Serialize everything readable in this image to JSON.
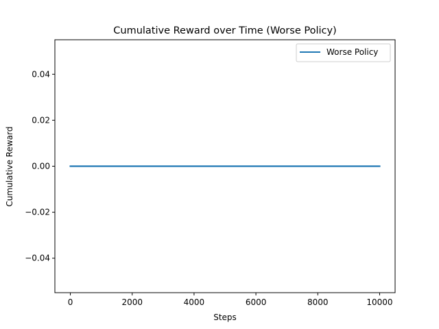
{
  "chart_data": {
    "type": "line",
    "title": "Cumulative Reward over Time (Worse Policy)",
    "xlabel": "Steps",
    "ylabel": "Cumulative Reward",
    "xlim": [
      -500,
      10500
    ],
    "ylim": [
      -0.055,
      0.055
    ],
    "xticks": [
      0,
      2000,
      4000,
      6000,
      8000,
      10000
    ],
    "xtick_labels": [
      "0",
      "2000",
      "4000",
      "6000",
      "8000",
      "10000"
    ],
    "yticks": [
      -0.04,
      -0.02,
      0.0,
      0.02,
      0.04
    ],
    "ytick_labels": [
      "−0.04",
      "−0.02",
      "0.00",
      "0.02",
      "0.04"
    ],
    "grid": false,
    "legend_position": "top-right",
    "series": [
      {
        "name": "Worse Policy",
        "color": "#1f77b4",
        "x": [
          0,
          10000
        ],
        "y": [
          0,
          0
        ]
      }
    ]
  }
}
